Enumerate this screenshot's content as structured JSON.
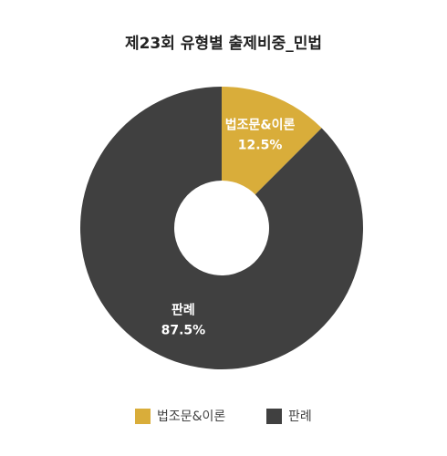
{
  "chart_data": {
    "type": "donut",
    "title": "제23회 유형별 출제비중_민법",
    "categories": [
      "법조문&이론",
      "판례"
    ],
    "values": [
      12.5,
      87.5
    ],
    "value_labels": [
      "12.5%",
      "87.5%"
    ],
    "colors": [
      "#d9ad3a",
      "#404040"
    ],
    "legend": "bottom"
  }
}
